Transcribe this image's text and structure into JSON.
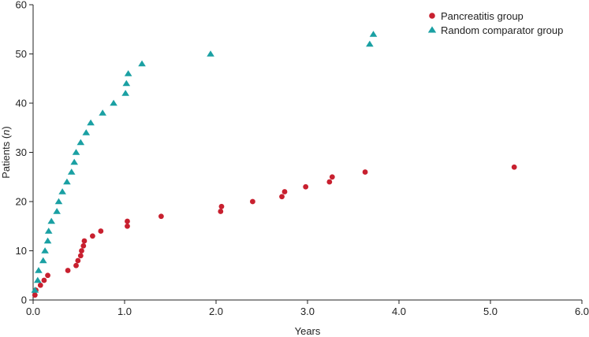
{
  "chart_data": {
    "type": "scatter",
    "xlabel": "Years",
    "ylabel_prefix": "Patients (",
    "ylabel_italic": "n",
    "ylabel_suffix": ")",
    "xlim": [
      0,
      6
    ],
    "ylim": [
      0,
      60
    ],
    "xticks": [
      "0.0",
      "1.0",
      "2.0",
      "3.0",
      "4.0",
      "5.0",
      "6.0"
    ],
    "yticks": [
      "0",
      "10",
      "20",
      "30",
      "40",
      "50",
      "60"
    ],
    "grid": false,
    "legend_position": "top-right",
    "series": [
      {
        "name": "Pancreatitis group",
        "marker": "circle",
        "color": "#c8202f",
        "points": [
          [
            0.02,
            1
          ],
          [
            0.03,
            2
          ],
          [
            0.08,
            3
          ],
          [
            0.12,
            4
          ],
          [
            0.16,
            5
          ],
          [
            0.38,
            6
          ],
          [
            0.47,
            7
          ],
          [
            0.49,
            8
          ],
          [
            0.52,
            9
          ],
          [
            0.53,
            10
          ],
          [
            0.55,
            11
          ],
          [
            0.56,
            12
          ],
          [
            0.65,
            13
          ],
          [
            0.74,
            14
          ],
          [
            1.03,
            15
          ],
          [
            1.03,
            16
          ],
          [
            1.4,
            17
          ],
          [
            2.05,
            18
          ],
          [
            2.06,
            19
          ],
          [
            2.4,
            20
          ],
          [
            2.72,
            21
          ],
          [
            2.75,
            22
          ],
          [
            2.98,
            23
          ],
          [
            3.24,
            24
          ],
          [
            3.27,
            25
          ],
          [
            3.63,
            26
          ],
          [
            5.26,
            27
          ]
        ]
      },
      {
        "name": "Random comparator group",
        "marker": "triangle",
        "color": "#1aa0a3",
        "points": [
          [
            0.02,
            2
          ],
          [
            0.05,
            4
          ],
          [
            0.06,
            6
          ],
          [
            0.11,
            8
          ],
          [
            0.13,
            10
          ],
          [
            0.16,
            12
          ],
          [
            0.17,
            14
          ],
          [
            0.2,
            16
          ],
          [
            0.26,
            18
          ],
          [
            0.28,
            20
          ],
          [
            0.32,
            22
          ],
          [
            0.37,
            24
          ],
          [
            0.42,
            26
          ],
          [
            0.45,
            28
          ],
          [
            0.47,
            30
          ],
          [
            0.52,
            32
          ],
          [
            0.58,
            34
          ],
          [
            0.63,
            36
          ],
          [
            0.76,
            38
          ],
          [
            0.88,
            40
          ],
          [
            1.01,
            42
          ],
          [
            1.02,
            44
          ],
          [
            1.04,
            46
          ],
          [
            1.19,
            48
          ],
          [
            1.94,
            50
          ],
          [
            3.68,
            52
          ],
          [
            3.72,
            54
          ]
        ]
      }
    ]
  }
}
